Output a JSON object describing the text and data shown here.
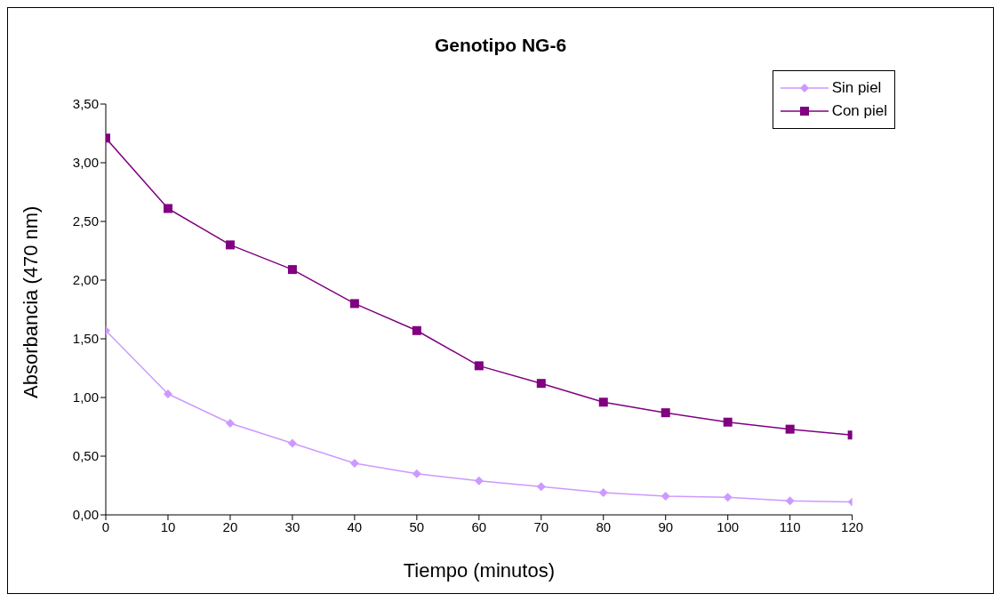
{
  "chart_data": {
    "type": "line",
    "title": "Genotipo NG-6",
    "xlabel": "Tiempo (minutos)",
    "ylabel": "Absorbancia (470 nm)",
    "x": [
      0,
      10,
      20,
      30,
      40,
      50,
      60,
      70,
      80,
      90,
      100,
      110,
      120
    ],
    "series": [
      {
        "name": "Sin piel",
        "color": "#cc99ff",
        "marker": "diamond",
        "values": [
          1.57,
          1.03,
          0.78,
          0.61,
          0.44,
          0.35,
          0.29,
          0.24,
          0.19,
          0.16,
          0.15,
          0.12,
          0.11
        ]
      },
      {
        "name": "Con piel",
        "color": "#800080",
        "marker": "square",
        "values": [
          3.21,
          2.61,
          2.3,
          2.09,
          1.8,
          1.57,
          1.27,
          1.12,
          0.96,
          0.87,
          0.79,
          0.73,
          0.68
        ]
      }
    ],
    "xlim": [
      0,
      120
    ],
    "xticks": [
      0,
      10,
      20,
      30,
      40,
      50,
      60,
      70,
      80,
      90,
      100,
      110,
      120
    ],
    "ylim": [
      0,
      3.5
    ],
    "yticks": [
      {
        "value": 0,
        "label": "0,00"
      },
      {
        "value": 0.5,
        "label": "0,50"
      },
      {
        "value": 1,
        "label": "1,00"
      },
      {
        "value": 1.5,
        "label": "1,50"
      },
      {
        "value": 2,
        "label": "2,00"
      },
      {
        "value": 2.5,
        "label": "2,50"
      },
      {
        "value": 3,
        "label": "3,00"
      },
      {
        "value": 3.5,
        "label": "3,50"
      }
    ],
    "grid": false,
    "legend": "top right",
    "line_style": "solid"
  }
}
